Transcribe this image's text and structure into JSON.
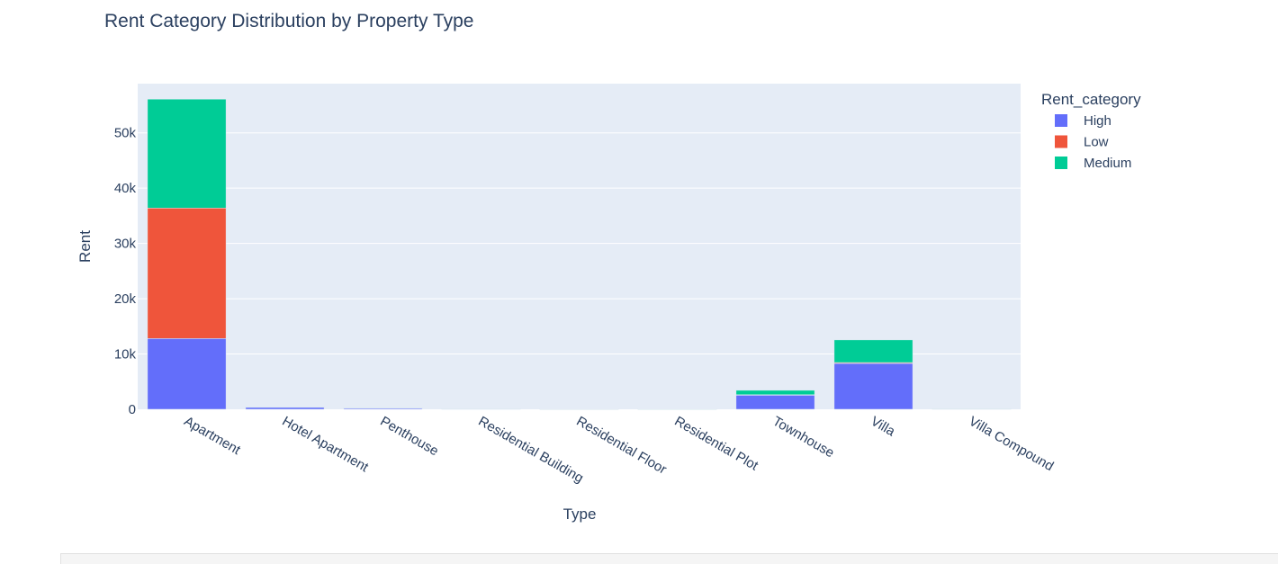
{
  "colors": {
    "plot_bg": "#E5ECF6",
    "grid": "#FFFFFF",
    "text": "#2a3f5f",
    "high": "#636EFA",
    "low": "#EF553B",
    "medium": "#00CC96"
  },
  "chart_data": {
    "type": "bar",
    "barmode": "stack",
    "title": "Rent Category Distribution by Property Type",
    "xlabel": "Type",
    "ylabel": "Rent",
    "ylim": [
      0,
      58900
    ],
    "yticks": [
      0,
      10000,
      20000,
      30000,
      40000,
      50000
    ],
    "ytick_labels": [
      "0",
      "10k",
      "20k",
      "30k",
      "40k",
      "50k"
    ],
    "grid": true,
    "legend_title": "Rent_category",
    "legend_position": "top-right",
    "categories": [
      "Apartment",
      "Hotel Apartment",
      "Penthouse",
      "Residential Building",
      "Residential Floor",
      "Residential Plot",
      "Townhouse",
      "Villa",
      "Villa Compound"
    ],
    "series": [
      {
        "name": "High",
        "color": "#636EFA",
        "values": [
          12800,
          400,
          250,
          80,
          60,
          50,
          2550,
          8300,
          90
        ]
      },
      {
        "name": "Low",
        "color": "#EF553B",
        "values": [
          23600,
          20,
          5,
          5,
          5,
          5,
          80,
          150,
          5
        ]
      },
      {
        "name": "Medium",
        "color": "#00CC96",
        "values": [
          19700,
          20,
          10,
          5,
          5,
          5,
          800,
          4100,
          5
        ]
      }
    ]
  }
}
